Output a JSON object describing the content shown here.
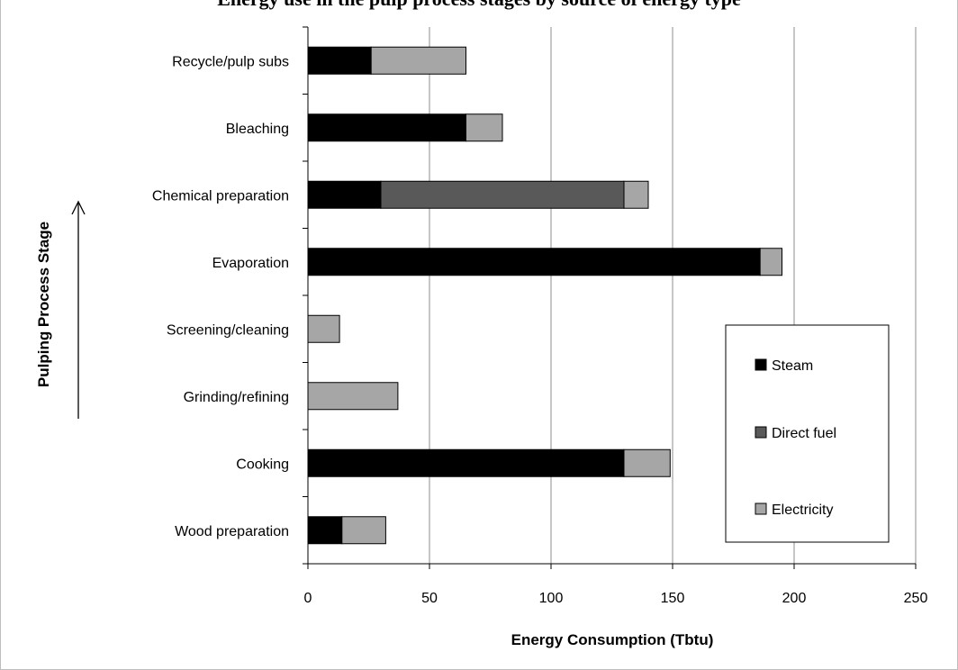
{
  "chart_data": {
    "type": "bar",
    "orientation": "horizontal",
    "stacked": true,
    "title": "Energy use in the pulp process stages by source of energy type",
    "xlabel": "Energy Consumption (Tbtu)",
    "ylabel": "Pulping Process Stage",
    "xlim": [
      0,
      250
    ],
    "xticks": [
      0,
      50,
      100,
      150,
      200,
      250
    ],
    "grid": "vertical",
    "categories": [
      "Recycle/pulp subs",
      "Bleaching",
      "Chemical preparation",
      "Evaporation",
      "Screening/cleaning",
      "Grinding/refining",
      "Cooking",
      "Wood preparation"
    ],
    "series": [
      {
        "name": "Steam",
        "color": "#000000",
        "values": [
          26,
          65,
          30,
          186,
          0,
          0,
          130,
          14
        ]
      },
      {
        "name": "Direct fuel",
        "color": "#595959",
        "values": [
          0,
          0,
          100,
          0,
          0,
          0,
          0,
          0
        ]
      },
      {
        "name": "Electricity",
        "color": "#a6a6a6",
        "values": [
          39,
          15,
          10,
          9,
          13,
          37,
          19,
          18
        ]
      }
    ],
    "legend": {
      "position": "bottom-right",
      "entries": [
        "Steam",
        "Direct fuel",
        "Electricity"
      ]
    }
  }
}
